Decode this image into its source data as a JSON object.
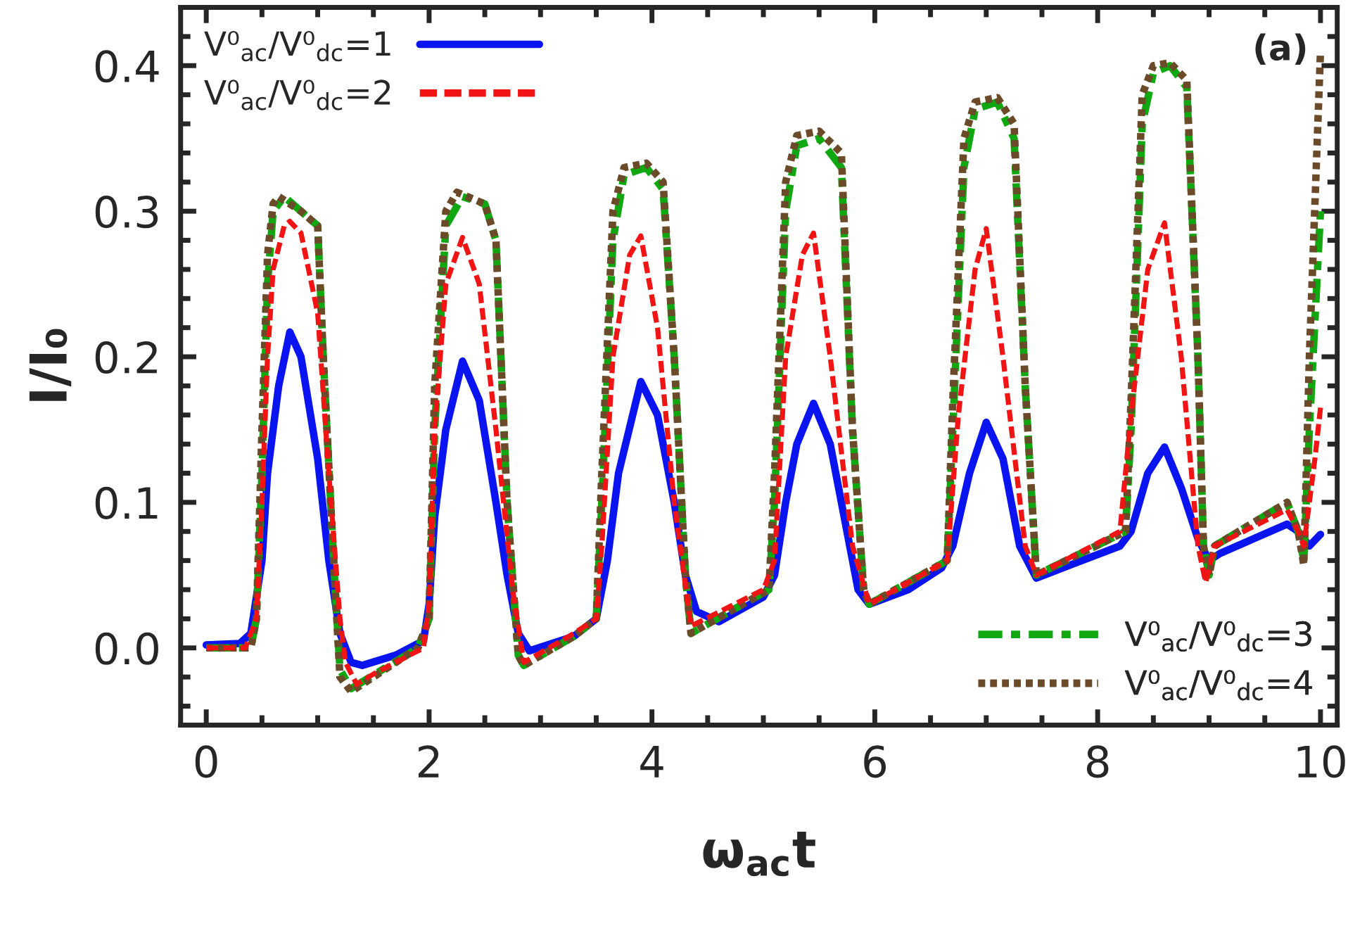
{
  "chart_data": {
    "type": "line",
    "xlabel": "ω$_{ac}$t",
    "ylabel": "I/I₀",
    "annotations": [
      "(a)"
    ],
    "xlim": [
      -0.23,
      10.15
    ],
    "xticks": [
      0,
      2,
      4,
      6,
      8,
      10
    ],
    "ylim": [
      -0.053,
      0.44
    ],
    "yticks": [
      {
        "value": 0,
        "label": "0.0"
      },
      0.1,
      0.2,
      0.3,
      0.4
    ],
    "grid": false,
    "legend": "top left",
    "marker": "none",
    "series": [
      {
        "name": "V⁰$_{ac}$/V⁰$_{dc}$=1",
        "color": "#0a14f0",
        "line_style": "solid",
        "x": [
          0,
          0.3,
          0.4,
          0.5,
          0.55,
          0.65,
          0.75,
          0.85,
          1.0,
          1.1,
          1.2,
          1.3,
          1.4,
          1.7,
          1.95,
          2.0,
          2.05,
          2.15,
          2.3,
          2.45,
          2.6,
          2.7,
          2.8,
          2.9,
          3.3,
          3.5,
          3.6,
          3.7,
          3.9,
          4.05,
          4.2,
          4.3,
          4.4,
          4.6,
          5.0,
          5.1,
          5.2,
          5.3,
          5.45,
          5.6,
          5.75,
          5.85,
          5.95,
          6.3,
          6.6,
          6.7,
          6.85,
          7.0,
          7.15,
          7.3,
          7.45,
          8.2,
          8.3,
          8.45,
          8.6,
          8.75,
          8.9,
          9.0,
          9.1,
          9.7,
          9.8,
          9.9,
          10.0
        ],
        "values": [
          0.002,
          0.003,
          0.01,
          0.06,
          0.12,
          0.18,
          0.217,
          0.2,
          0.13,
          0.06,
          0.01,
          -0.01,
          -0.012,
          -0.005,
          0.005,
          0.03,
          0.09,
          0.15,
          0.197,
          0.17,
          0.1,
          0.05,
          0.01,
          -0.002,
          0.008,
          0.02,
          0.06,
          0.12,
          0.183,
          0.16,
          0.1,
          0.05,
          0.025,
          0.018,
          0.035,
          0.05,
          0.1,
          0.14,
          0.168,
          0.14,
          0.08,
          0.04,
          0.03,
          0.04,
          0.055,
          0.07,
          0.12,
          0.155,
          0.13,
          0.07,
          0.048,
          0.07,
          0.08,
          0.12,
          0.138,
          0.11,
          0.075,
          0.06,
          0.065,
          0.085,
          0.08,
          0.07,
          0.078
        ]
      },
      {
        "name": "V⁰$_{ac}$/V⁰$_{dc}$=2",
        "color": "#f01414",
        "line_style": "dashed",
        "x": [
          0,
          0.35,
          0.45,
          0.5,
          0.55,
          0.6,
          0.7,
          0.75,
          0.85,
          1.0,
          1.1,
          1.2,
          1.25,
          1.35,
          1.5,
          1.95,
          2.0,
          2.05,
          2.15,
          2.3,
          2.45,
          2.6,
          2.75,
          2.85,
          3.3,
          3.5,
          3.55,
          3.65,
          3.8,
          3.9,
          4.05,
          4.2,
          4.35,
          5.0,
          5.1,
          5.2,
          5.35,
          5.45,
          5.6,
          5.8,
          5.95,
          6.65,
          6.75,
          6.9,
          7.0,
          7.15,
          7.35,
          7.45,
          8.2,
          8.3,
          8.45,
          8.6,
          8.75,
          8.9,
          8.97,
          9.05,
          9.7,
          9.8,
          9.85,
          9.95,
          10.0
        ],
        "values": [
          0,
          0,
          0.02,
          0.1,
          0.2,
          0.26,
          0.29,
          0.293,
          0.285,
          0.23,
          0.12,
          0.02,
          -0.01,
          -0.025,
          -0.018,
          0.0,
          0.03,
          0.15,
          0.25,
          0.282,
          0.25,
          0.15,
          0.04,
          -0.01,
          0.01,
          0.02,
          0.07,
          0.2,
          0.27,
          0.283,
          0.22,
          0.1,
          0.015,
          0.04,
          0.06,
          0.2,
          0.27,
          0.285,
          0.2,
          0.07,
          0.03,
          0.06,
          0.16,
          0.26,
          0.288,
          0.2,
          0.07,
          0.05,
          0.08,
          0.16,
          0.26,
          0.292,
          0.2,
          0.07,
          0.045,
          0.07,
          0.095,
          0.08,
          0.07,
          0.13,
          0.165
        ]
      },
      {
        "name": "V⁰$_{ac}$/V⁰$_{dc}$=3",
        "color": "#10a810",
        "line_style": "dashdot",
        "x": [
          0,
          0.4,
          0.45,
          0.5,
          0.55,
          0.6,
          0.7,
          0.85,
          1.0,
          1.05,
          1.15,
          1.2,
          1.3,
          1.9,
          2.0,
          2.05,
          2.15,
          2.3,
          2.5,
          2.6,
          2.7,
          2.8,
          2.85,
          3.3,
          3.5,
          3.55,
          3.65,
          3.75,
          3.95,
          4.1,
          4.2,
          4.3,
          4.35,
          5.05,
          5.1,
          5.2,
          5.3,
          5.5,
          5.7,
          5.8,
          5.9,
          5.95,
          6.65,
          6.7,
          6.8,
          6.9,
          7.1,
          7.25,
          7.35,
          7.45,
          8.25,
          8.3,
          8.4,
          8.5,
          8.65,
          8.8,
          8.9,
          8.95,
          9.0,
          9.05,
          9.7,
          9.8,
          9.85,
          9.9,
          10.0
        ],
        "values": [
          0,
          0,
          0.02,
          0.12,
          0.25,
          0.3,
          0.31,
          0.3,
          0.29,
          0.2,
          0.05,
          -0.015,
          -0.028,
          0.0,
          0.02,
          0.15,
          0.29,
          0.31,
          0.305,
          0.28,
          0.1,
          -0.005,
          -0.012,
          0.008,
          0.02,
          0.1,
          0.28,
          0.325,
          0.33,
          0.315,
          0.2,
          0.05,
          0.01,
          0.04,
          0.1,
          0.3,
          0.345,
          0.35,
          0.33,
          0.15,
          0.04,
          0.03,
          0.06,
          0.15,
          0.33,
          0.37,
          0.375,
          0.35,
          0.18,
          0.05,
          0.08,
          0.15,
          0.36,
          0.395,
          0.4,
          0.385,
          0.2,
          0.07,
          0.05,
          0.07,
          0.1,
          0.08,
          0.06,
          0.15,
          0.3
        ]
      },
      {
        "name": "V⁰$_{ac}$/V⁰$_{dc}$=4",
        "color": "#6b4a2a",
        "line_style": "dotted",
        "x": [
          0,
          0.4,
          0.45,
          0.5,
          0.55,
          0.6,
          0.65,
          0.85,
          1.0,
          1.05,
          1.15,
          1.2,
          1.3,
          1.9,
          2.0,
          2.05,
          2.15,
          2.25,
          2.5,
          2.6,
          2.7,
          2.8,
          2.85,
          3.3,
          3.5,
          3.55,
          3.65,
          3.75,
          3.95,
          4.1,
          4.2,
          4.3,
          4.35,
          5.05,
          5.1,
          5.2,
          5.3,
          5.5,
          5.7,
          5.8,
          5.9,
          5.95,
          6.65,
          6.7,
          6.8,
          6.9,
          7.1,
          7.25,
          7.35,
          7.45,
          8.25,
          8.3,
          8.4,
          8.5,
          8.65,
          8.8,
          8.9,
          8.95,
          9.0,
          9.05,
          9.7,
          9.8,
          9.85,
          9.9,
          10.0
        ],
        "values": [
          0,
          0,
          0.02,
          0.15,
          0.27,
          0.305,
          0.31,
          0.3,
          0.29,
          0.2,
          0.05,
          -0.02,
          -0.03,
          0.0,
          0.02,
          0.18,
          0.3,
          0.313,
          0.305,
          0.28,
          0.1,
          -0.005,
          -0.012,
          0.008,
          0.02,
          0.12,
          0.3,
          0.33,
          0.333,
          0.32,
          0.2,
          0.05,
          0.01,
          0.04,
          0.12,
          0.32,
          0.352,
          0.355,
          0.34,
          0.15,
          0.04,
          0.03,
          0.06,
          0.17,
          0.35,
          0.375,
          0.378,
          0.36,
          0.18,
          0.05,
          0.08,
          0.17,
          0.38,
          0.4,
          0.402,
          0.39,
          0.2,
          0.07,
          0.05,
          0.07,
          0.1,
          0.08,
          0.057,
          0.2,
          0.41
        ]
      }
    ]
  }
}
